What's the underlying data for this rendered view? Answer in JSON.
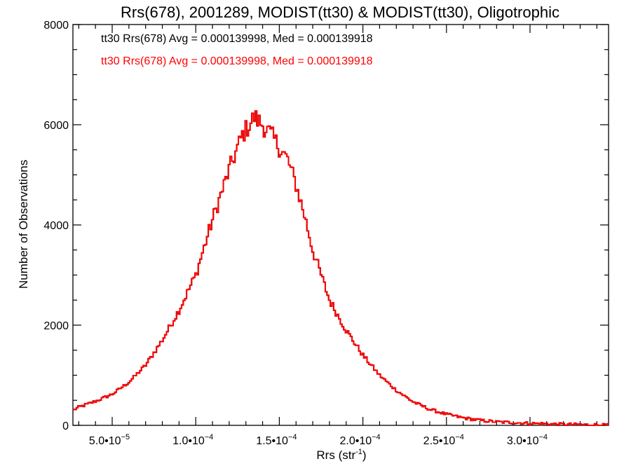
{
  "chart_data": {
    "type": "histogram",
    "title": "Rrs(678), 2001289, MODIST(tt30) & MODIST(tt30), Oligotrophic",
    "xlabel_main": "Rrs (str",
    "xlabel_sup": "-1",
    "xlabel_close": ")",
    "ylabel": "Number of Observations",
    "xlim": [
      2.65e-05,
      0.000347
    ],
    "ylim": [
      0,
      8000
    ],
    "x_ticks": [
      {
        "value": 5e-05,
        "mantissa": "5.0•10",
        "exp": "−5"
      },
      {
        "value": 0.0001,
        "mantissa": "1.0•10",
        "exp": "−4"
      },
      {
        "value": 0.00015,
        "mantissa": "1.5•10",
        "exp": "−4"
      },
      {
        "value": 0.0002,
        "mantissa": "2.0•10",
        "exp": "−4"
      },
      {
        "value": 0.00025,
        "mantissa": "2.5•10",
        "exp": "−4"
      },
      {
        "value": 0.0003,
        "mantissa": "3.0•10",
        "exp": "−4"
      }
    ],
    "y_ticks": [
      {
        "value": 0,
        "label": "0"
      },
      {
        "value": 2000,
        "label": "2000"
      },
      {
        "value": 4000,
        "label": "4000"
      },
      {
        "value": 6000,
        "label": "6000"
      },
      {
        "value": 8000,
        "label": "8000"
      }
    ],
    "annotations": [
      {
        "text": "tt30 Rrs(678) Avg = 0.000139998, Med = 0.000139918",
        "color": "#000000"
      },
      {
        "text": "tt30 Rrs(678) Avg = 0.000139998, Med = 0.000139918",
        "color": "#ff0000"
      }
    ],
    "series": [
      {
        "color": "#000000"
      },
      {
        "color": "#ff0000"
      }
    ],
    "shape_points": [
      {
        "x": 2.65e-05,
        "y": 300
      },
      {
        "x": 3e-05,
        "y": 360
      },
      {
        "x": 4e-05,
        "y": 480
      },
      {
        "x": 5e-05,
        "y": 620
      },
      {
        "x": 6e-05,
        "y": 860
      },
      {
        "x": 7e-05,
        "y": 1200
      },
      {
        "x": 8e-05,
        "y": 1700
      },
      {
        "x": 9e-05,
        "y": 2300
      },
      {
        "x": 0.0001,
        "y": 3000
      },
      {
        "x": 0.00011,
        "y": 4100
      },
      {
        "x": 0.00012,
        "y": 5100
      },
      {
        "x": 0.000128,
        "y": 5800
      },
      {
        "x": 0.000135,
        "y": 6150
      },
      {
        "x": 0.00014,
        "y": 6000
      },
      {
        "x": 0.000145,
        "y": 5800
      },
      {
        "x": 0.00015,
        "y": 5550
      },
      {
        "x": 0.000155,
        "y": 5300
      },
      {
        "x": 0.00016,
        "y": 4800
      },
      {
        "x": 0.000165,
        "y": 4200
      },
      {
        "x": 0.00017,
        "y": 3500
      },
      {
        "x": 0.000175,
        "y": 3000
      },
      {
        "x": 0.00018,
        "y": 2500
      },
      {
        "x": 0.00019,
        "y": 1900
      },
      {
        "x": 0.0002,
        "y": 1400
      },
      {
        "x": 0.00021,
        "y": 1000
      },
      {
        "x": 0.00022,
        "y": 700
      },
      {
        "x": 0.00023,
        "y": 470
      },
      {
        "x": 0.00024,
        "y": 320
      },
      {
        "x": 0.00025,
        "y": 220
      },
      {
        "x": 0.00026,
        "y": 150
      },
      {
        "x": 0.00027,
        "y": 100
      },
      {
        "x": 0.00028,
        "y": 70
      },
      {
        "x": 0.0003,
        "y": 40
      },
      {
        "x": 0.00032,
        "y": 20
      },
      {
        "x": 0.000347,
        "y": 5
      }
    ],
    "bin_width": 1e-06
  }
}
